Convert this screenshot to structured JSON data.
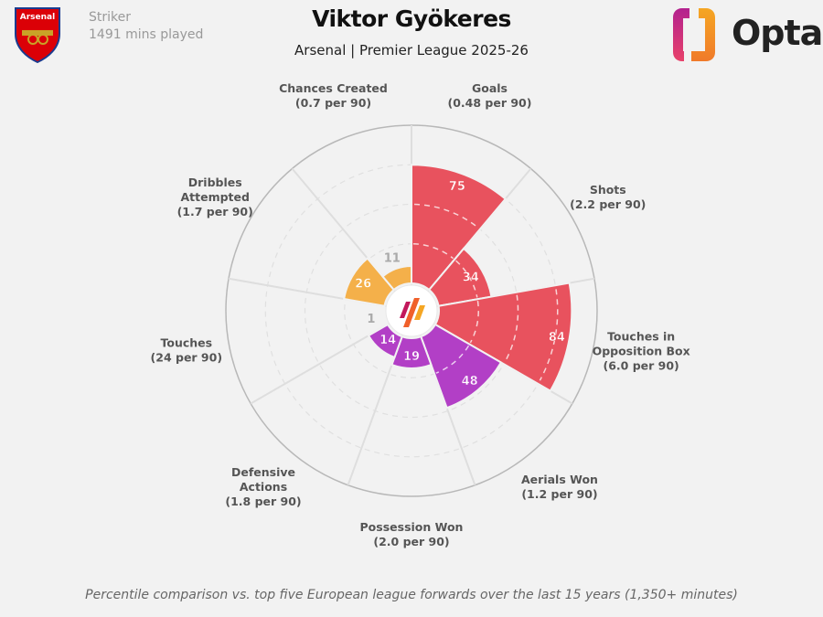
{
  "header": {
    "title": "Viktor Gyökeres",
    "subtitle": "Arsenal | Premier League 2025-26",
    "position": "Striker",
    "minutes": "1491 mins played",
    "club_crest_text": "Arsenal",
    "brand": "Opta"
  },
  "footnote": "Percentile comparison vs. top five European league forwards over the last 15 years (1,350+ minutes)",
  "colors": {
    "attacking": "#e8525e",
    "possession": "#b23fc6",
    "creation": "#f4b04a",
    "background": "#f2f2f2"
  },
  "chart_data": {
    "type": "pizza",
    "range": [
      0,
      100
    ],
    "gridlines": [
      25,
      50,
      75
    ],
    "categories": [
      {
        "name": "Goals",
        "line1": "Goals",
        "line2": "",
        "per90": "(0.48 per 90)",
        "value": 75,
        "group": "attacking"
      },
      {
        "name": "Shots",
        "line1": "Shots",
        "line2": "",
        "per90": "(2.2 per 90)",
        "value": 34,
        "group": "attacking"
      },
      {
        "name": "Touches in Opposition Box",
        "line1": "Touches in",
        "line2": "Opposition Box",
        "per90": "(6.0 per 90)",
        "value": 84,
        "group": "attacking"
      },
      {
        "name": "Aerials Won",
        "line1": "Aerials Won",
        "line2": "",
        "per90": "(1.2 per 90)",
        "value": 48,
        "group": "possession"
      },
      {
        "name": "Possession Won",
        "line1": "Possession Won",
        "line2": "",
        "per90": "(2.0 per 90)",
        "value": 19,
        "group": "possession"
      },
      {
        "name": "Defensive Actions",
        "line1": "Defensive",
        "line2": "Actions",
        "per90": "(1.8 per 90)",
        "value": 14,
        "group": "possession"
      },
      {
        "name": "Touches",
        "line1": "Touches",
        "line2": "",
        "per90": "(24 per 90)",
        "value": 1,
        "group": "creation"
      },
      {
        "name": "Dribbles Attempted",
        "line1": "Dribbles",
        "line2": "Attempted",
        "per90": "(1.7 per 90)",
        "value": 26,
        "group": "creation"
      },
      {
        "name": "Chances Created",
        "line1": "Chances Created",
        "line2": "",
        "per90": "(0.7 per 90)",
        "value": 11,
        "group": "creation"
      }
    ]
  }
}
